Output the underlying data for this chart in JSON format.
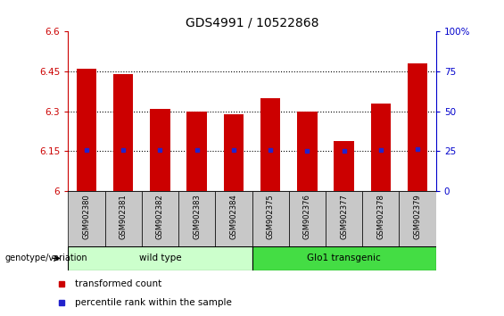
{
  "title": "GDS4991 / 10522868",
  "samples": [
    "GSM902380",
    "GSM902381",
    "GSM902382",
    "GSM902383",
    "GSM902384",
    "GSM902375",
    "GSM902376",
    "GSM902377",
    "GSM902378",
    "GSM902379"
  ],
  "transformed_count": [
    6.46,
    6.44,
    6.31,
    6.3,
    6.29,
    6.35,
    6.3,
    6.19,
    6.33,
    6.48
  ],
  "percentile_rank_values": [
    6.155,
    6.155,
    6.155,
    6.155,
    6.155,
    6.155,
    6.152,
    6.152,
    6.155,
    6.157
  ],
  "ylim": [
    6.0,
    6.6
  ],
  "yticks": [
    6.0,
    6.15,
    6.3,
    6.45,
    6.6
  ],
  "ytick_labels": [
    "6",
    "6.15",
    "6.3",
    "6.45",
    "6.6"
  ],
  "right_yticks": [
    0,
    25,
    50,
    75,
    100
  ],
  "right_ytick_labels": [
    "0",
    "25",
    "50",
    "75",
    "100%"
  ],
  "bar_color": "#cc0000",
  "dot_color": "#2222cc",
  "bar_width": 0.55,
  "groups": [
    {
      "label": "wild type",
      "start": 0,
      "end": 4,
      "color": "#ccffcc"
    },
    {
      "label": "Glo1 transgenic",
      "start": 5,
      "end": 9,
      "color": "#44dd44"
    }
  ],
  "genotype_label": "genotype/variation",
  "legend_items": [
    {
      "label": "transformed count",
      "color": "#cc0000"
    },
    {
      "label": "percentile rank within the sample",
      "color": "#2222cc"
    }
  ],
  "plot_bg": "#ffffff",
  "label_bg": "#c8c8c8"
}
